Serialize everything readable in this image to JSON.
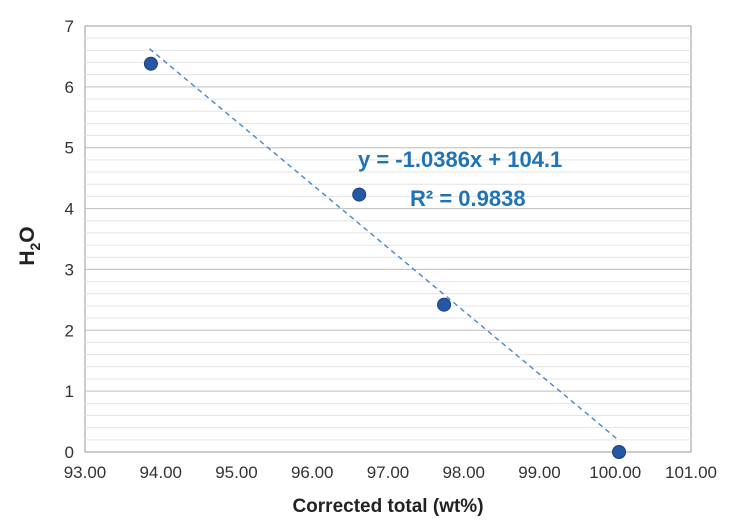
{
  "chart_data": {
    "type": "scatter",
    "xlabel": "Corrected total (wt%)",
    "ylabel": "H2O",
    "xlim": [
      93.0,
      101.0
    ],
    "ylim": [
      0,
      7
    ],
    "x_ticks": [
      "93.00",
      "94.00",
      "95.00",
      "96.00",
      "97.00",
      "98.00",
      "99.00",
      "100.00",
      "101.00"
    ],
    "y_ticks": [
      "0",
      "1",
      "2",
      "3",
      "4",
      "5",
      "6",
      "7"
    ],
    "points": [
      {
        "x": 93.87,
        "y": 6.38
      },
      {
        "x": 96.62,
        "y": 4.23
      },
      {
        "x": 97.74,
        "y": 2.42
      },
      {
        "x": 100.05,
        "y": 0.0
      }
    ],
    "trendline": {
      "slope": -1.0386,
      "intercept": 104.1,
      "x_range": [
        93.85,
        100.03
      ]
    },
    "equation": "y = -1.0386x + 104.1",
    "r_squared": "R² = 0.9838",
    "minor_grid_step": 0.2,
    "grid": true,
    "colors": {
      "marker": "#2457a6",
      "trendline": "#4a86c8",
      "annotation": "#1f73b7",
      "major_grid": "#bdbdbd",
      "minor_grid": "#e4e4e4"
    }
  }
}
